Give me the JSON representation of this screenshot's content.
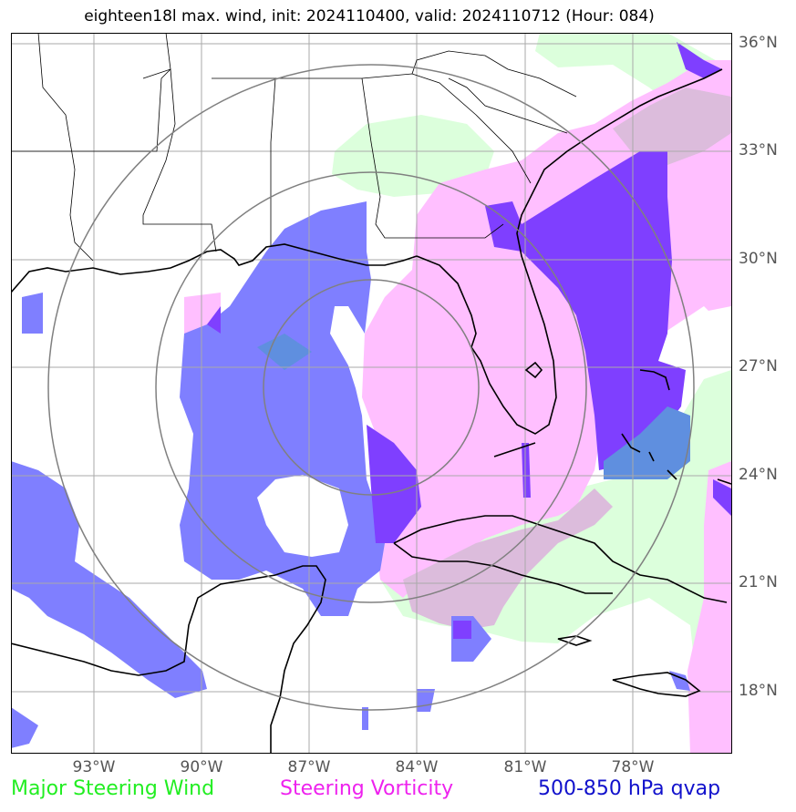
{
  "title": "eighteen18l max. wind, init: 2024110400, valid: 2024110712 (Hour: 084)",
  "legend": {
    "wind": {
      "label": "Major Steering Wind",
      "color": "#22ee22"
    },
    "vorticity": {
      "label": "Steering Vorticity",
      "color": "#ee22ee"
    },
    "qvap": {
      "label": "500-850 hPa qvap",
      "color": "#1111cc"
    }
  },
  "axes": {
    "lat_labels": [
      "36°N",
      "33°N",
      "30°N",
      "27°N",
      "24°N",
      "21°N",
      "18°N"
    ],
    "lon_labels": [
      "93°W",
      "90°W",
      "87°W",
      "84°W",
      "81°W",
      "78°W"
    ],
    "lat_values": [
      36,
      33,
      30,
      27,
      24,
      21,
      18
    ],
    "lon_values": [
      -93,
      -90,
      -87,
      -84,
      -81,
      -78
    ],
    "lon_range": [
      -95.3,
      -75.2
    ],
    "lat_range": [
      16.0,
      36.3
    ],
    "grid": true
  },
  "colors": {
    "wind_fill": "#dcffdc",
    "vort_fill": "#ffbfff",
    "vort_wind_overlap": "#dcbcdc",
    "qvap_fill": "#7f7fff",
    "qvap_vort_overlap": "#7f3fff",
    "qvap_wind_overlap": "#5f8fdf",
    "coast": "#000000",
    "ring": "#808080",
    "grid": "#aaaaaa"
  }
}
